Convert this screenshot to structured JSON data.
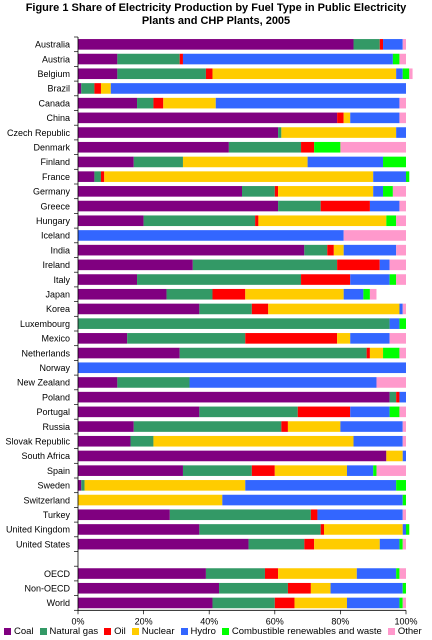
{
  "figure": {
    "title_line1": "Figure 1  Share of Electricity Production by Fuel Type in Public Electricity",
    "title_line2": "Plants and CHP Plants, 2005"
  },
  "chart_data": {
    "type": "bar",
    "orientation": "horizontal",
    "stacked": true,
    "xlim": [
      0,
      100
    ],
    "xtick_labels": [
      "0%",
      "20%",
      "40%",
      "60%",
      "80%",
      "100%"
    ],
    "grid": false,
    "legend_position": "bottom",
    "categories": [
      "Australia",
      "Austria",
      "Belgium",
      "Brazil",
      "Canada",
      "China",
      "Czech Republic",
      "Denmark",
      "Finland",
      "France",
      "Germany",
      "Greece",
      "Hungary",
      "Iceland",
      "India",
      "Ireland",
      "Italy",
      "Japan",
      "Korea",
      "Luxembourg",
      "Mexico",
      "Netherlands",
      "Norway",
      "New Zealand",
      "Poland",
      "Portugal",
      "Russia",
      "Slovak Republic",
      "South Africa",
      "Spain",
      "Sweden",
      "Switzerland",
      "Turkey",
      "United Kingdom",
      "United States",
      "",
      "OECD",
      "Non-OECD",
      "World"
    ],
    "series": [
      {
        "name": "Coal",
        "color": "#800080",
        "values": [
          84,
          12,
          12,
          1,
          18,
          79,
          61,
          46,
          17,
          5,
          50,
          61,
          20,
          0,
          69,
          35,
          18,
          27,
          37,
          0,
          15,
          31,
          0,
          12,
          95,
          37,
          17,
          16,
          94,
          32,
          1,
          0,
          28,
          37,
          52,
          null,
          39,
          43,
          41
        ]
      },
      {
        "name": "Natural gas",
        "color": "#339966",
        "values": [
          8,
          19,
          27,
          4,
          5,
          0,
          1,
          22,
          15,
          2,
          10,
          13,
          34,
          0,
          7,
          44,
          50,
          14,
          16,
          95,
          36,
          57,
          0,
          22,
          2,
          30,
          45,
          7,
          0,
          21,
          1,
          0,
          43,
          37,
          17,
          null,
          18,
          21,
          19
        ]
      },
      {
        "name": "Oil",
        "color": "#ff0000",
        "values": [
          1,
          1,
          2,
          2,
          3,
          2,
          0,
          4,
          0,
          1,
          1,
          15,
          1,
          0,
          2,
          13,
          15,
          10,
          5,
          0,
          28,
          1,
          0,
          0,
          1,
          16,
          2,
          0,
          0,
          7,
          0,
          0,
          2,
          1,
          3,
          null,
          4,
          7,
          6
        ]
      },
      {
        "name": "Nuclear",
        "color": "#ffcc00",
        "values": [
          0,
          0,
          56,
          3,
          16,
          2,
          35,
          0,
          38,
          82,
          29,
          0,
          39,
          0,
          3,
          0,
          0,
          30,
          40,
          0,
          4,
          4,
          0,
          0,
          0,
          0,
          16,
          61,
          5,
          22,
          49,
          44,
          0,
          24,
          20,
          null,
          24,
          6,
          16
        ]
      },
      {
        "name": "Hydro",
        "color": "#3366ff",
        "values": [
          6,
          64,
          2,
          90,
          56,
          15,
          3,
          0,
          23,
          10,
          3,
          9,
          0,
          81,
          16,
          3,
          12,
          6,
          1,
          3,
          12,
          0,
          100,
          57,
          2,
          12,
          19,
          15,
          1,
          8,
          46,
          55,
          26,
          1,
          6,
          null,
          12,
          22,
          16
        ]
      },
      {
        "name": "Combustible renewables and waste",
        "color": "#00ff00",
        "values": [
          0,
          2,
          2,
          0,
          0,
          0,
          0,
          8,
          7,
          1,
          3,
          0,
          3,
          0,
          0,
          0,
          2,
          2,
          0,
          2,
          0,
          5,
          0,
          0,
          0,
          3,
          0,
          0,
          0,
          1,
          3,
          1,
          0,
          1,
          1,
          null,
          1,
          1,
          1
        ]
      },
      {
        "name": "Other",
        "color": "#ff99cc",
        "values": [
          1,
          2,
          1,
          0,
          2,
          2,
          0,
          20,
          0,
          0,
          4,
          2,
          3,
          19,
          3,
          5,
          3,
          2,
          1,
          0,
          5,
          2,
          0,
          9,
          0,
          2,
          1,
          1,
          0,
          9,
          0,
          0,
          1,
          0,
          1,
          null,
          2,
          0,
          1
        ]
      }
    ]
  }
}
